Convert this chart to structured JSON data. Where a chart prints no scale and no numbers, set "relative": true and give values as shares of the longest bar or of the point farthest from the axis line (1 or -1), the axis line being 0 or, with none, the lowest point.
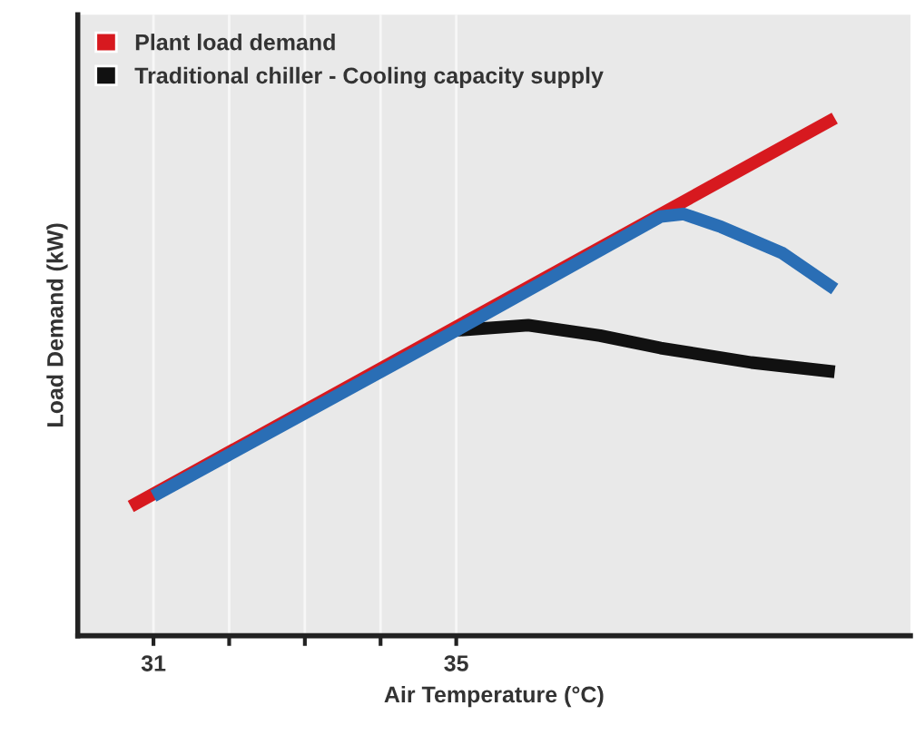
{
  "chart_data": {
    "type": "line",
    "relative": true,
    "xlabel": "Air Temperature (°C)",
    "ylabel": "Load Demand (kW)",
    "xlim": [
      30.0,
      41.0
    ],
    "xticks": [
      31,
      {
        "value": 32,
        "label": null
      },
      {
        "value": 33,
        "label": null
      },
      {
        "value": 34,
        "label": null
      },
      35
    ],
    "grid": "x",
    "legend": "top left",
    "line_style": "solid",
    "series": [
      {
        "name": "Plant load demand",
        "color": "#d7191f",
        "x": [
          30.7,
          40.0
        ],
        "values": [
          0.25,
          1.0
        ]
      },
      {
        "name": "Traditional chiller - Cooling capacity supply",
        "color": "#111111",
        "x": [
          35.0,
          35.95,
          36.9,
          37.7,
          38.9,
          40.0
        ],
        "values": [
          0.59,
          0.6,
          0.58,
          0.556,
          0.528,
          0.51
        ]
      },
      {
        "color": "#2a6eb5",
        "x": [
          31.0,
          35.0,
          37.7,
          38.0,
          38.5,
          39.3,
          40.0
        ],
        "values": [
          0.27,
          0.59,
          0.81,
          0.815,
          0.79,
          0.74,
          0.67
        ]
      }
    ]
  }
}
